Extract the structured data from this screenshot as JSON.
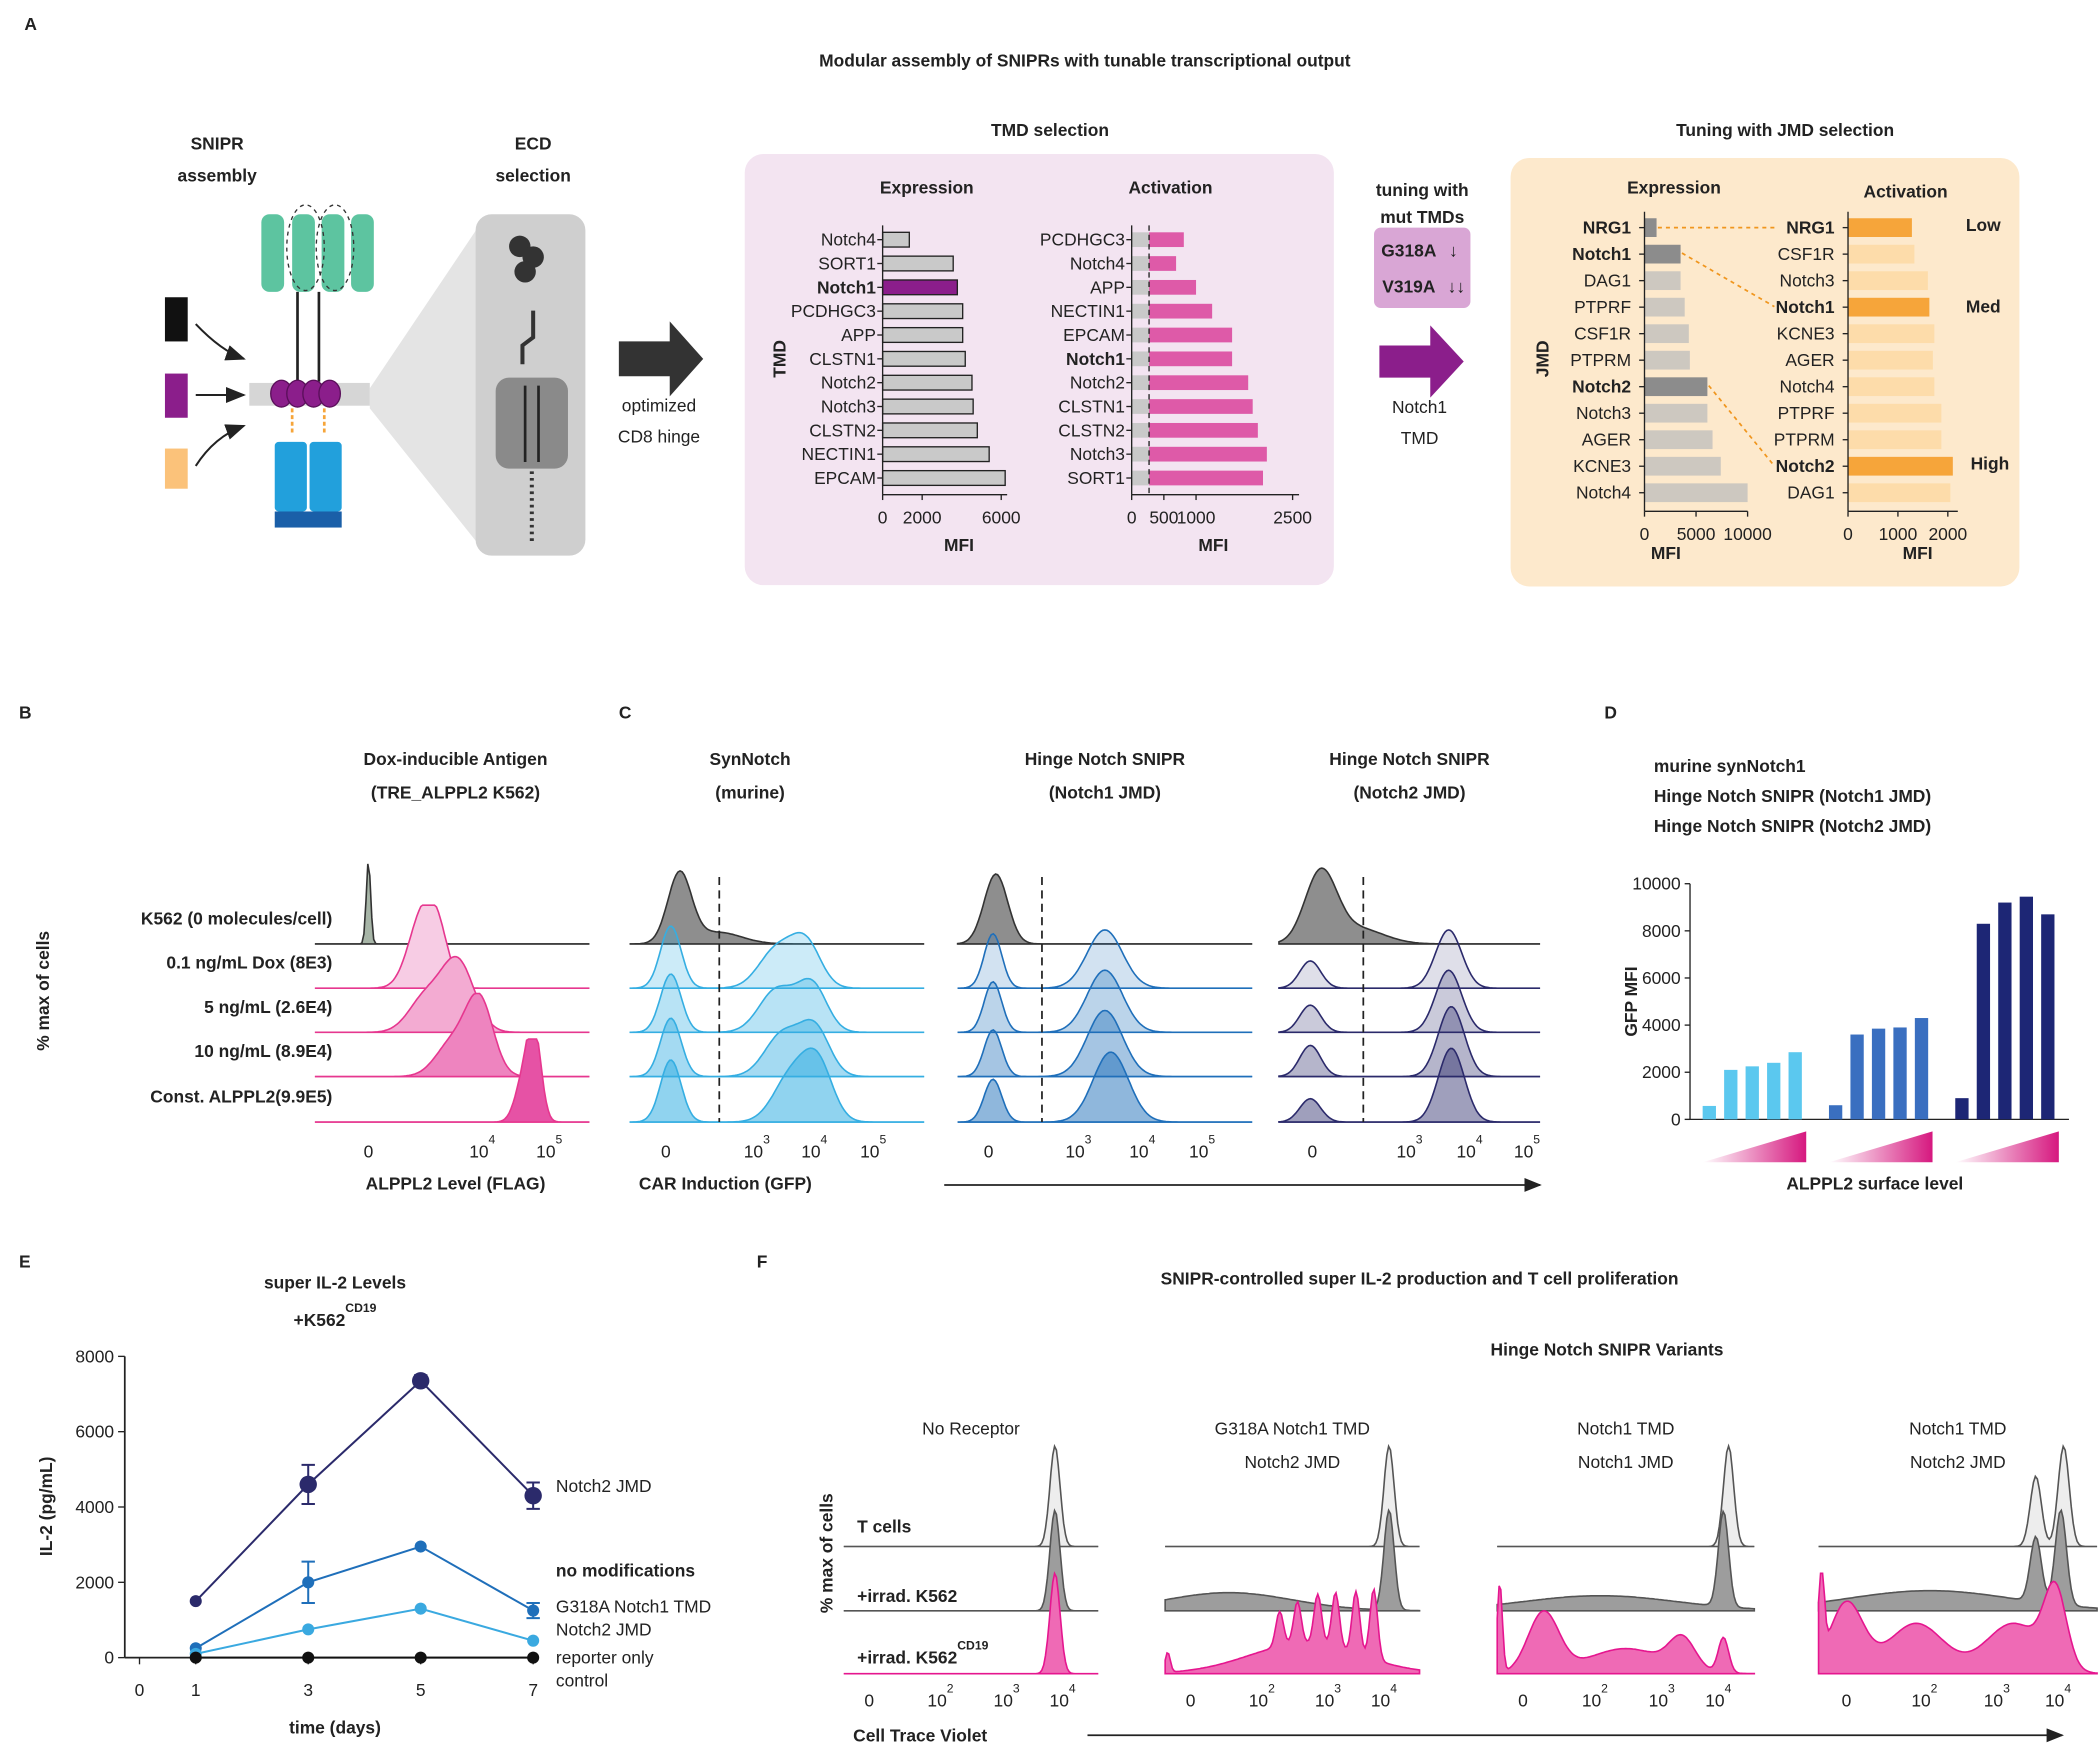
{
  "panel_labels": [
    "A",
    "B",
    "C",
    "D",
    "E",
    "F"
  ],
  "panel_a": {
    "title": "Modular assembly of SNIPRs with tunable transcriptional output",
    "snipr_assembly": [
      "SNIPR",
      "assembly"
    ],
    "ecd_selection": [
      "ECD",
      "selection"
    ],
    "hinge": [
      "optimized",
      "CD8 hinge"
    ],
    "tmd_selection": "TMD selection",
    "tuning_mut": [
      "tuning with",
      "mut TMDs"
    ],
    "mutations": [
      "G318A",
      "V319A"
    ],
    "notch1_tmd": [
      "Notch1",
      "TMD"
    ],
    "jmd_selection": "Tuning with JMD selection",
    "levels": [
      "Low",
      "Med",
      "High"
    ]
  },
  "panel_b": {
    "title": [
      "Dox-inducible Antigen",
      "(TRE_ALPPL2 K562)"
    ],
    "ylabel": "% max of cells",
    "rows": [
      "K562 (0 molecules/cell)",
      "0.1 ng/mL Dox (8E3)",
      "5 ng/mL (2.6E4)",
      "10 ng/mL (8.9E4)",
      "Const. ALPPL2(9.9E5)"
    ],
    "xticks": [
      {
        "base": "0"
      },
      {
        "base": "10",
        "exp": "4"
      },
      {
        "base": "10",
        "exp": "5"
      }
    ],
    "xlabel": "ALPPL2 Level (FLAG)"
  },
  "panel_c": {
    "titles": [
      [
        "SynNotch",
        "(murine)"
      ],
      [
        "Hinge Notch SNIPR",
        "(Notch1 JMD)"
      ],
      [
        "Hinge Notch SNIPR",
        "(Notch2 JMD)"
      ]
    ],
    "xticks": [
      {
        "base": "0"
      },
      {
        "base": "10",
        "exp": "3"
      },
      {
        "base": "10",
        "exp": "4"
      },
      {
        "base": "10",
        "exp": "5"
      }
    ],
    "xlabel": "CAR Induction (GFP)"
  },
  "panel_f": {
    "title": "SNIPR-controlled super IL-2 production and T cell proliferation",
    "subtitle": "Hinge Notch SNIPR Variants",
    "panels": [
      [
        "No Receptor"
      ],
      [
        "G318A Notch1 TMD",
        "Notch2 JMD"
      ],
      [
        "Notch1 TMD",
        "Notch1 JMD"
      ],
      [
        "Notch1 TMD",
        "Notch2 JMD"
      ]
    ],
    "rows": [
      {
        "base": "T cells"
      },
      {
        "base": "+irrad. K562"
      },
      {
        "base": "+irrad. K562",
        "exp": "CD19"
      }
    ],
    "ylabel": "% max of cells",
    "xticks": [
      {
        "base": "0"
      },
      {
        "base": "10",
        "exp": "2"
      },
      {
        "base": "10",
        "exp": "3"
      },
      {
        "base": "10",
        "exp": "4"
      }
    ],
    "xlabel": "Cell Trace Violet"
  },
  "chart_data": [
    {
      "type": "hbar",
      "title": "Expression",
      "ylabel": "TMD",
      "xlabel": "MFI",
      "categories": [
        "Notch4",
        "SORT1",
        "Notch1",
        "PCDHGC3",
        "APP",
        "CLSTN1",
        "Notch2",
        "Notch3",
        "CLSTN2",
        "NECTIN1",
        "EPCAM"
      ],
      "values": [
        1350,
        3570,
        3780,
        4050,
        4050,
        4180,
        4520,
        4580,
        4790,
        5390,
        6200
      ],
      "colors": [
        "#c9c9c9",
        "#c9c9c9",
        "#8b1e8b",
        "#c9c9c9",
        "#c9c9c9",
        "#c9c9c9",
        "#c9c9c9",
        "#c9c9c9",
        "#c9c9c9",
        "#c9c9c9",
        "#c9c9c9"
      ],
      "label_colors": [
        "#222222",
        "#222222",
        "#8b1e8b",
        "#222222",
        "#222222",
        "#222222",
        "#222222",
        "#222222",
        "#222222",
        "#222222",
        "#222222"
      ],
      "stroke": "#222222",
      "xlim": [
        0,
        6300
      ],
      "xticks": [
        0,
        2000,
        6000
      ]
    },
    {
      "type": "hbar",
      "title": "Activation",
      "xlabel": "MFI",
      "categories": [
        "PCDHGC3",
        "Notch4",
        "APP",
        "NECTIN1",
        "EPCAM",
        "Notch1",
        "Notch2",
        "CLSTN1",
        "CLSTN2",
        "Notch3",
        "SORT1"
      ],
      "values": [
        810,
        690,
        1000,
        1250,
        1560,
        1560,
        1810,
        1880,
        1960,
        2100,
        2040
      ],
      "color": "#de5aa8",
      "label_colors": [
        "#222222",
        "#222222",
        "#222222",
        "#222222",
        "#222222",
        "#8b1e8b",
        "#222222",
        "#222222",
        "#222222",
        "#222222",
        "#222222"
      ],
      "threshold": 270,
      "xlim": [
        0,
        2600
      ],
      "xticks": [
        0,
        500,
        1000,
        2500
      ]
    },
    {
      "type": "hbar",
      "title": "Expression",
      "ylabel": "JMD",
      "xlabel": "MFI",
      "categories": [
        "NRG1",
        "Notch1",
        "DAG1",
        "PTPRF",
        "CSF1R",
        "PTPRM",
        "Notch2",
        "Notch3",
        "AGER",
        "KCNE3",
        "Notch4"
      ],
      "values": [
        1170,
        3500,
        3500,
        3900,
        4300,
        4400,
        6100,
        6100,
        6600,
        7400,
        10000
      ],
      "colors": [
        "#8c8c8c",
        "#8c8c8c",
        "#cdc8c0",
        "#cdc8c0",
        "#cdc8c0",
        "#cdc8c0",
        "#8c8c8c",
        "#cdc8c0",
        "#cdc8c0",
        "#cdc8c0",
        "#cdc8c0"
      ],
      "label_colors": [
        "#f0961e",
        "#f0961e",
        "#222222",
        "#222222",
        "#222222",
        "#222222",
        "#f0961e",
        "#222222",
        "#222222",
        "#222222",
        "#222222"
      ],
      "xlim": [
        0,
        10000
      ],
      "xticks": [
        0,
        5000,
        10000
      ]
    },
    {
      "type": "hbar",
      "title": "Activation",
      "xlabel": "MFI",
      "categories": [
        "NRG1",
        "CSF1R",
        "Notch3",
        "Notch1",
        "KCNE3",
        "AGER",
        "Notch4",
        "PTPRF",
        "PTPRM",
        "Notch2",
        "DAG1"
      ],
      "values": [
        1280,
        1330,
        1600,
        1630,
        1730,
        1700,
        1730,
        1870,
        1870,
        2100,
        2050
      ],
      "colors": [
        "#f6a53a",
        "#fddcaa",
        "#fddcaa",
        "#f6a53a",
        "#fddcaa",
        "#fddcaa",
        "#fddcaa",
        "#fddcaa",
        "#fddcaa",
        "#f6a53a",
        "#fddcaa"
      ],
      "label_colors": [
        "#f0961e",
        "#222222",
        "#222222",
        "#f0961e",
        "#222222",
        "#222222",
        "#222222",
        "#222222",
        "#222222",
        "#f0961e",
        "#222222"
      ],
      "xlim": [
        0,
        2200
      ],
      "xticks": [
        0,
        1000,
        2000
      ]
    },
    {
      "type": "bar",
      "ylabel": "GFP MFI",
      "xlabel": "ALPPL2 surface level",
      "categories": [
        null,
        null,
        null,
        null,
        null
      ],
      "series": [
        {
          "name": "murine synNotch1",
          "color": "#5bc8ef",
          "values": [
            570,
            2100,
            2250,
            2400,
            2850
          ]
        },
        {
          "name": "Hinge Notch SNIPR (Notch1 JMD)",
          "color": "#3a6fc0",
          "values": [
            600,
            3600,
            3850,
            3900,
            4300
          ]
        },
        {
          "name": "Hinge Notch SNIPR (Notch2 JMD)",
          "color": "#1d2675",
          "values": [
            900,
            8300,
            9200,
            9450,
            8700
          ]
        }
      ],
      "ylim": [
        0,
        10000
      ],
      "yticks": [
        0,
        2000,
        4000,
        6000,
        8000,
        10000
      ]
    },
    {
      "type": "line",
      "title": "super IL-2 Levels",
      "subtitle": {
        "base": "+K562",
        "exp": "CD19"
      },
      "xlabel": "time (days)",
      "ylabel": "IL-2 (pg/mL)",
      "x": [
        1,
        3,
        5,
        7
      ],
      "xlim": [
        0,
        7
      ],
      "xticks": [
        0,
        1,
        3,
        5,
        7
      ],
      "ylim": [
        0,
        8000
      ],
      "yticks": [
        0,
        2000,
        4000,
        6000,
        8000
      ],
      "series": [
        {
          "name": [
            "Notch2 JMD"
          ],
          "color": "#2b2a6b",
          "values": [
            1500,
            4600,
            7350,
            4300
          ],
          "errors": [
            0,
            520,
            150,
            350
          ]
        },
        {
          "name": [
            "no modifications"
          ],
          "color": "#1f6fba",
          "values": [
            250,
            2000,
            2950,
            1250
          ],
          "errors": [
            0,
            550,
            0,
            200
          ]
        },
        {
          "name": [
            "G318A Notch1 TMD",
            "Notch2 JMD"
          ],
          "color": "#3aa9e0",
          "values": [
            100,
            750,
            1300,
            450
          ]
        },
        {
          "name": [
            "reporter only",
            "control"
          ],
          "color": "#111111",
          "values": [
            0,
            0,
            0,
            0
          ]
        }
      ]
    }
  ]
}
